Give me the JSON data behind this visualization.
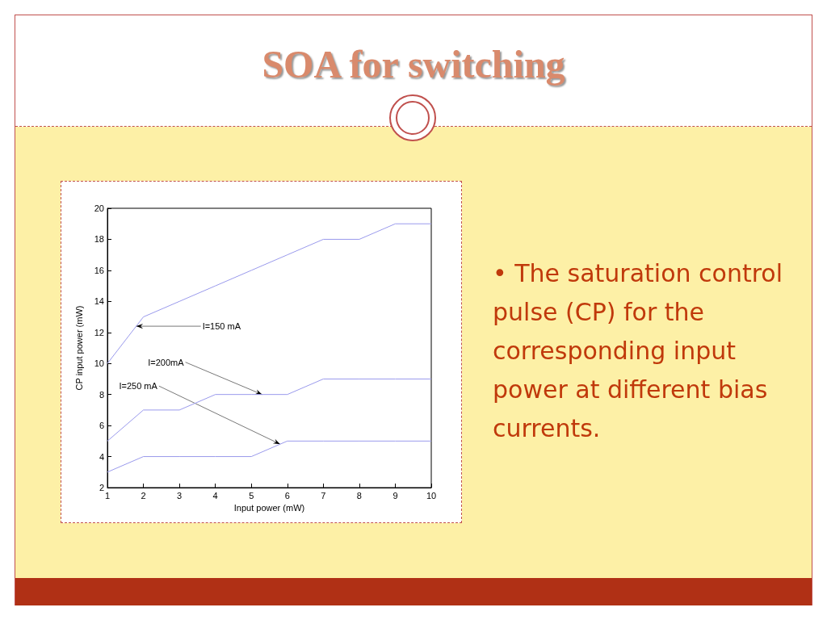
{
  "chart_data": {
    "type": "line",
    "title": "SOA for switching",
    "xlabel": "Input power (mW)",
    "ylabel": "CP input power (mW)",
    "x": [
      1,
      2,
      3,
      4,
      5,
      6,
      7,
      8,
      9,
      10
    ],
    "series": [
      {
        "color": "#9a9aec",
        "values": [
          10,
          13,
          14,
          15,
          16,
          17,
          18,
          18,
          19,
          19
        ]
      },
      {
        "color": "#9a9aec",
        "values": [
          5,
          7,
          7,
          8,
          8,
          8,
          9,
          9,
          9,
          9
        ]
      },
      {
        "color": "#9a9aec",
        "values": [
          3,
          4,
          4,
          4,
          4,
          5,
          5,
          5,
          5,
          5
        ]
      }
    ],
    "xlim": [
      1,
      10
    ],
    "xticks": [
      1,
      2,
      3,
      4,
      5,
      6,
      7,
      8,
      9,
      10
    ],
    "ylim": [
      2,
      20
    ],
    "yticks": [
      2,
      4,
      6,
      8,
      10,
      12,
      14,
      16,
      18,
      20
    ],
    "grid": false,
    "marker": "none",
    "line_style": "solid",
    "annotations": [
      {
        "text": "I=150 mA",
        "x": 1.8,
        "y": 12.4
      },
      {
        "text": "I=200mA",
        "x": 5.3,
        "y": 8
      },
      {
        "text": "I=250 mA",
        "x": 5.8,
        "y": 4.8
      },
      "• The saturation control pulse (CP) for the corresponding input power at different bias currents."
    ]
  }
}
